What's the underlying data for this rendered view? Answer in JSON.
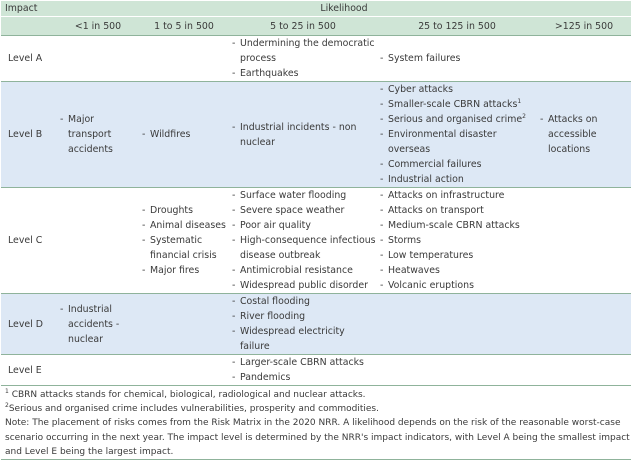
{
  "table": {
    "impact_header": "Impact",
    "likelihood_header": "Likelihood",
    "columns": [
      "<1 in 500",
      "1 to 5 in 500",
      "5 to 25 in 500",
      "25 to 125 in 500",
      ">125 in 500"
    ],
    "rows": [
      {
        "level": "Level A",
        "cells": [
          [],
          [],
          [
            "Undermining the democratic process",
            "Earthquakes"
          ],
          [
            "System failures"
          ],
          []
        ]
      },
      {
        "level": "Level B",
        "cells": [
          [
            "Major transport accidents"
          ],
          [
            "Wildfires"
          ],
          [
            "Industrial incidents - non nuclear"
          ],
          [
            "Cyber attacks",
            "Smaller-scale CBRN attacks",
            "Serious and organised crime",
            "Environmental disaster overseas",
            "Commercial failures",
            "Industrial action"
          ],
          [
            "Attacks on accessible locations"
          ]
        ],
        "footnote_marks": {
          "cbrn": "1",
          "crime": "2"
        }
      },
      {
        "level": "Level C",
        "cells": [
          [],
          [
            "Droughts",
            "Animal diseases",
            "Systematic financial crisis",
            "Major fires"
          ],
          [
            "Surface water flooding",
            "Severe space weather",
            "Poor air quality",
            "High-consequence infectious disease outbreak",
            "Antimicrobial resistance",
            "Widespread public disorder"
          ],
          [
            "Attacks on infrastructure",
            "Attacks on transport",
            "Medium-scale CBRN attacks",
            "Storms",
            "Low temperatures",
            "Heatwaves",
            "Volcanic eruptions"
          ],
          []
        ]
      },
      {
        "level": "Level D",
        "cells": [
          [
            "Industrial accidents - nuclear"
          ],
          [],
          [
            "Costal flooding",
            "River flooding",
            "Widespread electricity failure"
          ],
          [],
          []
        ]
      },
      {
        "level": "Level E",
        "cells": [
          [],
          [],
          [
            "Larger-scale CBRN attacks",
            "Pandemics"
          ],
          [],
          []
        ]
      }
    ]
  },
  "notes": {
    "footnote1_mark": "1",
    "footnote1": " CBRN attacks stands for chemical, biological, radiological and nuclear attacks.",
    "footnote2_mark": "2",
    "footnote2": "Serious and organised crime includes vulnerabilities, prosperity and commodities.",
    "note": "Note: The placement of risks comes from the Risk Matrix in the 2020 NRR. A likelihood depends on the risk of the reasonable worst-case scenario occurring in the next year. The impact level is determined by the NRR's impact indicators, with Level A being the smallest impact and Level E being the largest impact."
  },
  "colors": {
    "header_bg": "#cfe5d6",
    "row_shade": "#dde8f5",
    "rule": "#8fb39b"
  }
}
